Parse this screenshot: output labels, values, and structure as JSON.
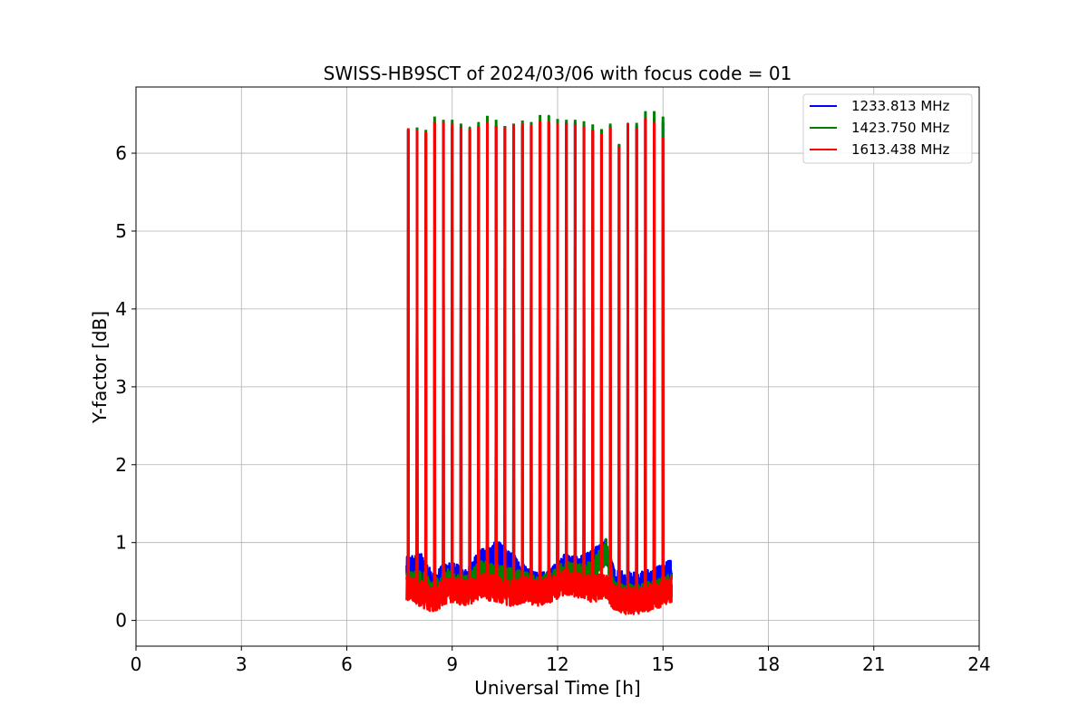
{
  "chart_data": {
    "type": "line",
    "title": "SWISS-HB9SCT of 2024/03/06 with focus code = 01",
    "xlabel": "Universal Time [h]",
    "ylabel": "Y-factor [dB]",
    "xlim": [
      0,
      24
    ],
    "ylim": [
      -0.33,
      6.85
    ],
    "xticks": [
      "0",
      "3",
      "6",
      "9",
      "12",
      "15",
      "18",
      "21",
      "24"
    ],
    "yticks": [
      "0",
      "1",
      "2",
      "3",
      "4",
      "5",
      "6"
    ],
    "grid": true,
    "legend_position": "top-right",
    "observation": {
      "start_h": 7.7,
      "end_h": 15.25,
      "peak_spacing_h": 0.25
    },
    "series": [
      {
        "name": "1233.813 MHz",
        "color": "#0000ff",
        "baseline_segments": [
          {
            "x": [
              7.75,
              8.1,
              8.45,
              8.9,
              9.4,
              9.8,
              10.3,
              10.7,
              11.1,
              11.4,
              11.8,
              12.2,
              12.6,
              13.0,
              13.4,
              13.6,
              13.9,
              14.3,
              14.7,
              15.0,
              15.25
            ],
            "y": [
              0.65,
              0.7,
              0.45,
              0.6,
              0.5,
              0.75,
              0.85,
              0.7,
              0.55,
              0.45,
              0.5,
              0.7,
              0.65,
              0.75,
              0.9,
              0.5,
              0.45,
              0.45,
              0.5,
              0.55,
              0.65
            ]
          }
        ],
        "peaks": [
          {
            "x": 7.75,
            "y": 6.3
          },
          {
            "x": 8.0,
            "y": 6.3
          },
          {
            "x": 8.25,
            "y": 6.25
          },
          {
            "x": 8.5,
            "y": 6.4
          },
          {
            "x": 8.75,
            "y": 6.4
          },
          {
            "x": 9.0,
            "y": 6.35
          },
          {
            "x": 9.25,
            "y": 6.35
          },
          {
            "x": 9.5,
            "y": 6.3
          },
          {
            "x": 9.75,
            "y": 6.35
          },
          {
            "x": 10.0,
            "y": 6.4
          },
          {
            "x": 10.25,
            "y": 6.35
          },
          {
            "x": 10.5,
            "y": 6.35
          },
          {
            "x": 10.75,
            "y": 6.35
          },
          {
            "x": 11.0,
            "y": 6.35
          },
          {
            "x": 11.25,
            "y": 6.35
          },
          {
            "x": 11.5,
            "y": 6.4
          },
          {
            "x": 11.75,
            "y": 6.4
          },
          {
            "x": 12.0,
            "y": 6.4
          },
          {
            "x": 12.25,
            "y": 6.4
          },
          {
            "x": 12.5,
            "y": 6.4
          },
          {
            "x": 12.75,
            "y": 6.35
          },
          {
            "x": 13.0,
            "y": 6.3
          },
          {
            "x": 13.25,
            "y": 6.3
          },
          {
            "x": 13.5,
            "y": 6.35
          },
          {
            "x": 13.75,
            "y": 6.1
          },
          {
            "x": 14.0,
            "y": 6.35
          },
          {
            "x": 14.25,
            "y": 6.35
          },
          {
            "x": 14.5,
            "y": 6.45
          },
          {
            "x": 14.75,
            "y": 6.45
          },
          {
            "x": 15.0,
            "y": 6.4
          }
        ]
      },
      {
        "name": "1423.750 MHz",
        "color": "#008000",
        "baseline_segments": [
          {
            "x": [
              7.75,
              8.1,
              8.45,
              8.9,
              9.4,
              9.8,
              10.3,
              10.7,
              11.1,
              11.4,
              11.8,
              12.2,
              12.6,
              13.0,
              13.4,
              13.6,
              13.9,
              14.3,
              14.7,
              15.0,
              15.25
            ],
            "y": [
              0.45,
              0.5,
              0.35,
              0.5,
              0.4,
              0.6,
              0.55,
              0.5,
              0.45,
              0.4,
              0.45,
              0.6,
              0.55,
              0.6,
              0.9,
              0.35,
              0.3,
              0.3,
              0.35,
              0.4,
              0.45
            ]
          }
        ],
        "peaks": [
          {
            "x": 7.75,
            "y": 6.3
          },
          {
            "x": 8.0,
            "y": 6.33
          },
          {
            "x": 8.25,
            "y": 6.3
          },
          {
            "x": 8.5,
            "y": 6.47
          },
          {
            "x": 8.75,
            "y": 6.43
          },
          {
            "x": 9.0,
            "y": 6.43
          },
          {
            "x": 9.25,
            "y": 6.38
          },
          {
            "x": 9.5,
            "y": 6.33
          },
          {
            "x": 9.75,
            "y": 6.4
          },
          {
            "x": 10.0,
            "y": 6.48
          },
          {
            "x": 10.25,
            "y": 6.43
          },
          {
            "x": 10.5,
            "y": 6.35
          },
          {
            "x": 10.75,
            "y": 6.38
          },
          {
            "x": 11.0,
            "y": 6.42
          },
          {
            "x": 11.25,
            "y": 6.4
          },
          {
            "x": 11.5,
            "y": 6.49
          },
          {
            "x": 11.75,
            "y": 6.48
          },
          {
            "x": 12.0,
            "y": 6.44
          },
          {
            "x": 12.25,
            "y": 6.43
          },
          {
            "x": 12.5,
            "y": 6.43
          },
          {
            "x": 12.75,
            "y": 6.41
          },
          {
            "x": 13.0,
            "y": 6.37
          },
          {
            "x": 13.25,
            "y": 6.31
          },
          {
            "x": 13.5,
            "y": 6.38
          },
          {
            "x": 13.75,
            "y": 6.12
          },
          {
            "x": 14.0,
            "y": 6.38
          },
          {
            "x": 14.25,
            "y": 6.39
          },
          {
            "x": 14.5,
            "y": 6.54
          },
          {
            "x": 14.75,
            "y": 6.54
          },
          {
            "x": 15.0,
            "y": 6.47
          }
        ]
      },
      {
        "name": "1613.438 MHz",
        "color": "#ff0000",
        "baseline_segments": [
          {
            "x": [
              7.75,
              8.1,
              8.45,
              8.9,
              9.4,
              9.8,
              10.3,
              10.7,
              11.1,
              11.4,
              11.8,
              12.2,
              12.6,
              13.0,
              13.4,
              13.6,
              13.9,
              14.3,
              14.7,
              15.0,
              15.25
            ],
            "y": [
              0.4,
              0.35,
              0.25,
              0.4,
              0.35,
              0.45,
              0.4,
              0.35,
              0.4,
              0.35,
              0.4,
              0.5,
              0.45,
              0.4,
              0.45,
              0.3,
              0.25,
              0.25,
              0.3,
              0.35,
              0.4
            ]
          }
        ],
        "peaks": [
          {
            "x": 7.75,
            "y": 6.32
          },
          {
            "x": 8.0,
            "y": 6.3
          },
          {
            "x": 8.25,
            "y": 6.27
          },
          {
            "x": 8.5,
            "y": 6.4
          },
          {
            "x": 8.75,
            "y": 6.4
          },
          {
            "x": 9.0,
            "y": 6.38
          },
          {
            "x": 9.25,
            "y": 6.33
          },
          {
            "x": 9.5,
            "y": 6.3
          },
          {
            "x": 9.75,
            "y": 6.35
          },
          {
            "x": 10.0,
            "y": 6.4
          },
          {
            "x": 10.25,
            "y": 6.35
          },
          {
            "x": 10.5,
            "y": 6.33
          },
          {
            "x": 10.75,
            "y": 6.37
          },
          {
            "x": 11.0,
            "y": 6.38
          },
          {
            "x": 11.25,
            "y": 6.36
          },
          {
            "x": 11.5,
            "y": 6.42
          },
          {
            "x": 11.75,
            "y": 6.4
          },
          {
            "x": 12.0,
            "y": 6.38
          },
          {
            "x": 12.25,
            "y": 6.38
          },
          {
            "x": 12.5,
            "y": 6.37
          },
          {
            "x": 12.75,
            "y": 6.35
          },
          {
            "x": 13.0,
            "y": 6.3
          },
          {
            "x": 13.25,
            "y": 6.25
          },
          {
            "x": 13.5,
            "y": 6.33
          },
          {
            "x": 13.75,
            "y": 6.08
          },
          {
            "x": 14.0,
            "y": 6.38
          },
          {
            "x": 14.25,
            "y": 6.32
          },
          {
            "x": 14.5,
            "y": 6.45
          },
          {
            "x": 14.75,
            "y": 6.4
          },
          {
            "x": 15.0,
            "y": 6.2
          }
        ]
      }
    ]
  }
}
